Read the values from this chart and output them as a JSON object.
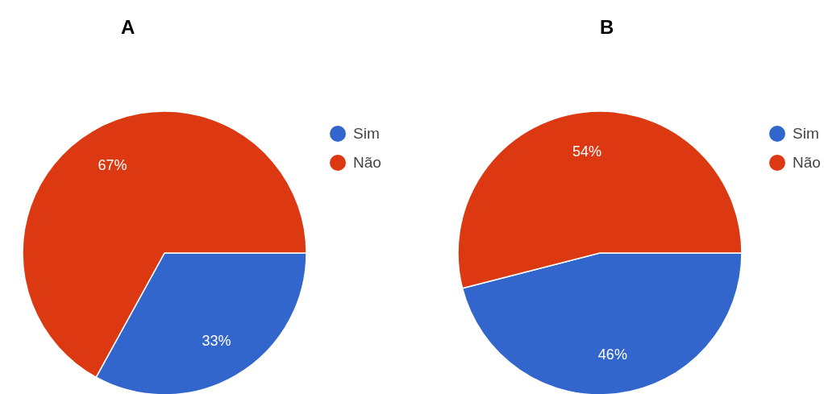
{
  "chart_data": [
    {
      "type": "pie",
      "title": "A",
      "categories": [
        "Sim",
        "Não"
      ],
      "values": [
        33,
        67
      ],
      "colors": [
        "#3366cc",
        "#dc3912"
      ],
      "value_labels": [
        "33%",
        "67%"
      ],
      "legend": "right"
    },
    {
      "type": "pie",
      "title": "B",
      "categories": [
        "Sim",
        "Não"
      ],
      "values": [
        46,
        54
      ],
      "colors": [
        "#3366cc",
        "#dc3912"
      ],
      "value_labels": [
        "46%",
        "54%"
      ],
      "legend": "right"
    }
  ]
}
